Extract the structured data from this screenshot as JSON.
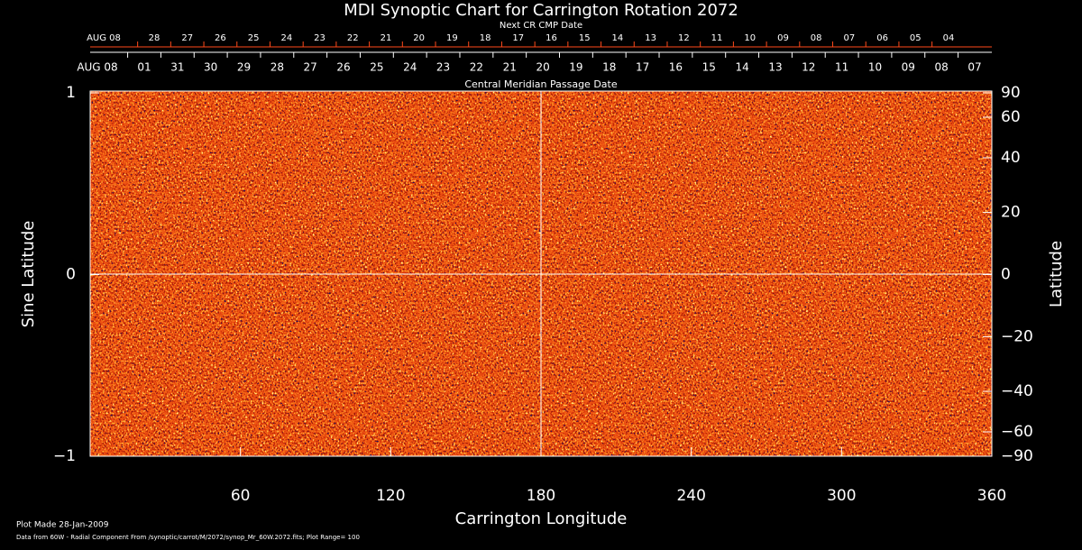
{
  "chart_data": {
    "type": "synoptic-map",
    "title": "MDI Synoptic Chart for Carrington Rotation 2072",
    "x_label": "Carrington Longitude",
    "y_label": "Sine Latitude",
    "y2_label": "Latitude",
    "xlim": [
      0,
      360
    ],
    "xticks": [
      60,
      120,
      180,
      240,
      300,
      360
    ],
    "ylim": [
      -1,
      1
    ],
    "yticks": [
      {
        "value": -1,
        "label": "−1"
      },
      0,
      1
    ],
    "y2lim": [
      -90,
      90
    ],
    "y2scale": "sine",
    "y2ticks": [
      90,
      60,
      40,
      20,
      0,
      {
        "value": -20,
        "label": "−20"
      },
      {
        "value": -40,
        "label": "−40"
      },
      {
        "value": -60,
        "label": "−60"
      },
      {
        "value": -90,
        "label": "−90"
      }
    ],
    "top_axis": {
      "label": "Central Meridian Passage Date",
      "start_label": "AUG 08",
      "color": "#ffffff",
      "dates": [
        "01",
        "31",
        "30",
        "29",
        "28",
        "27",
        "26",
        "25",
        "24",
        "23",
        "22",
        "21",
        "20",
        "19",
        "18",
        "17",
        "16",
        "15",
        "14",
        "13",
        "12",
        "11",
        "10",
        "09",
        "08",
        "07"
      ]
    },
    "top_axis2": {
      "label": "Next CR CMP Date",
      "start_label": "AUG 08",
      "color": "#ff4a1a",
      "dates": [
        "28",
        "27",
        "26",
        "25",
        "24",
        "23",
        "22",
        "21",
        "20",
        "19",
        "18",
        "17",
        "16",
        "15",
        "14",
        "13",
        "12",
        "11",
        "10",
        "09",
        "08",
        "07",
        "06",
        "05",
        "04"
      ]
    },
    "plot_made": "Plot Made 28-Jan-2009",
    "data_source": "Data from 60W - Radial Component From /synoptic/carrot/M/2072/synop_Mr_60W.2072.fits; Plot Range= 100"
  }
}
